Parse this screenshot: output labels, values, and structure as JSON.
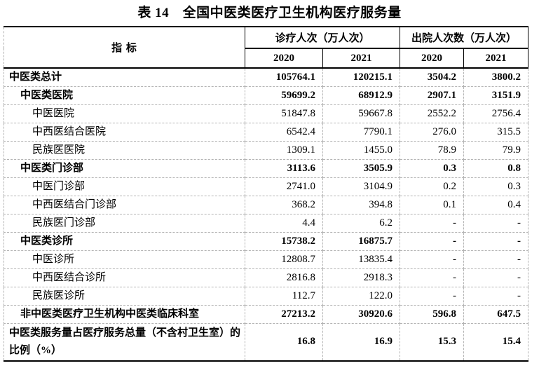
{
  "title": "表 14　全国中医类医疗卫生机构医疗服务量",
  "table": {
    "header": {
      "indicator": "指  标",
      "group1": "诊疗人次（万人次）",
      "group2": "出院人次数（万人次）",
      "years": [
        "2020",
        "2021",
        "2020",
        "2021"
      ]
    },
    "rows": [
      {
        "label": "中医类总计",
        "indent": 0,
        "bold": true,
        "values": [
          "105764.1",
          "120215.1",
          "3504.2",
          "3800.2"
        ]
      },
      {
        "label": "中医类医院",
        "indent": 1,
        "bold": true,
        "values": [
          "59699.2",
          "68912.9",
          "2907.1",
          "3151.9"
        ]
      },
      {
        "label": "中医医院",
        "indent": 2,
        "bold": false,
        "values": [
          "51847.8",
          "59667.8",
          "2552.2",
          "2756.4"
        ]
      },
      {
        "label": "中西医结合医院",
        "indent": 2,
        "bold": false,
        "values": [
          "6542.4",
          "7790.1",
          "276.0",
          "315.5"
        ]
      },
      {
        "label": "民族医医院",
        "indent": 2,
        "bold": false,
        "values": [
          "1309.1",
          "1455.0",
          "78.9",
          "79.9"
        ]
      },
      {
        "label": "中医类门诊部",
        "indent": 1,
        "bold": true,
        "values": [
          "3113.6",
          "3505.9",
          "0.3",
          "0.8"
        ]
      },
      {
        "label": "中医门诊部",
        "indent": 2,
        "bold": false,
        "values": [
          "2741.0",
          "3104.9",
          "0.2",
          "0.3"
        ]
      },
      {
        "label": "中西医结合门诊部",
        "indent": 2,
        "bold": false,
        "values": [
          "368.2",
          "394.8",
          "0.1",
          "0.4"
        ]
      },
      {
        "label": "民族医门诊部",
        "indent": 2,
        "bold": false,
        "values": [
          "4.4",
          "6.2",
          "-",
          "-"
        ]
      },
      {
        "label": "中医类诊所",
        "indent": 1,
        "bold": true,
        "values": [
          "15738.2",
          "16875.7",
          "-",
          "-"
        ]
      },
      {
        "label": "中医诊所",
        "indent": 2,
        "bold": false,
        "values": [
          "12808.7",
          "13835.4",
          "-",
          "-"
        ]
      },
      {
        "label": "中西医结合诊所",
        "indent": 2,
        "bold": false,
        "values": [
          "2816.8",
          "2918.3",
          "-",
          "-"
        ]
      },
      {
        "label": "民族医诊所",
        "indent": 2,
        "bold": false,
        "values": [
          "112.7",
          "122.0",
          "-",
          "-"
        ]
      },
      {
        "label": "非中医类医疗卫生机构中医类临床科室",
        "indent": 1,
        "bold": true,
        "values": [
          "27213.2",
          "30920.6",
          "596.8",
          "647.5"
        ]
      },
      {
        "label": "中医类服务量占医疗服务总量（不含村卫生室）的比例（%）",
        "indent": 0,
        "bold": true,
        "values": [
          "16.8",
          "16.9",
          "15.3",
          "15.4"
        ]
      }
    ]
  }
}
